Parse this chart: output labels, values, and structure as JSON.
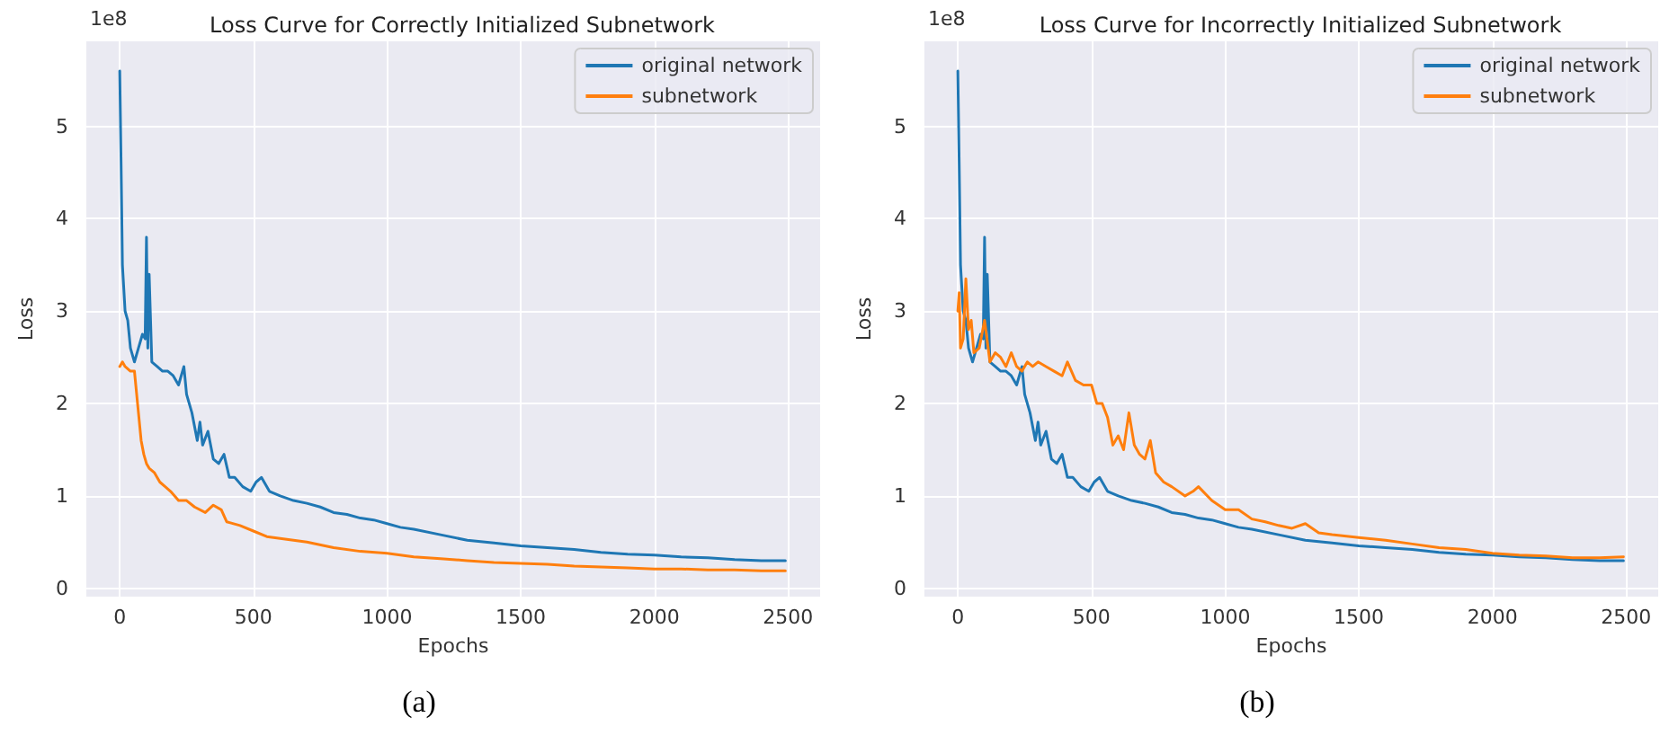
{
  "chart_data": [
    {
      "type": "line",
      "title": "Loss Curve for Correctly Initialized Subnetwork",
      "xlabel": "Epochs",
      "ylabel": "Loss",
      "annotations": [
        "1e8",
        "(a)"
      ],
      "xlim": [
        -125,
        2620
      ],
      "ylim": [
        -0.09,
        5.92
      ],
      "xticks": [
        0,
        500,
        1000,
        1500,
        2000,
        2500
      ],
      "yticks": [
        0,
        1,
        2,
        3,
        4,
        5
      ],
      "grid": true,
      "legend": "top right",
      "line_style": "solid",
      "marker": "none",
      "series": [
        {
          "name": "original network",
          "color": "#1f77b4",
          "x": [
            0,
            5,
            10,
            20,
            30,
            40,
            55,
            70,
            85,
            95,
            100,
            105,
            110,
            120,
            140,
            160,
            180,
            200,
            220,
            240,
            250,
            270,
            290,
            300,
            310,
            330,
            350,
            370,
            390,
            410,
            430,
            460,
            490,
            510,
            530,
            560,
            600,
            650,
            700,
            750,
            800,
            850,
            900,
            950,
            1000,
            1050,
            1100,
            1200,
            1300,
            1400,
            1500,
            1600,
            1700,
            1800,
            1900,
            2000,
            2100,
            2200,
            2300,
            2400,
            2490
          ],
          "values": [
            5.6,
            4.6,
            3.5,
            3.0,
            2.9,
            2.6,
            2.45,
            2.6,
            2.75,
            2.7,
            3.8,
            2.6,
            3.4,
            2.45,
            2.4,
            2.35,
            2.35,
            2.3,
            2.2,
            2.4,
            2.1,
            1.9,
            1.6,
            1.8,
            1.55,
            1.7,
            1.4,
            1.35,
            1.45,
            1.2,
            1.2,
            1.1,
            1.05,
            1.15,
            1.2,
            1.05,
            1.0,
            0.95,
            0.92,
            0.88,
            0.82,
            0.8,
            0.76,
            0.74,
            0.7,
            0.66,
            0.64,
            0.58,
            0.52,
            0.49,
            0.46,
            0.44,
            0.42,
            0.39,
            0.37,
            0.36,
            0.34,
            0.33,
            0.31,
            0.3,
            0.3
          ]
        },
        {
          "name": "subnetwork",
          "color": "#ff7f0e",
          "x": [
            0,
            10,
            20,
            40,
            55,
            60,
            70,
            80,
            90,
            100,
            110,
            130,
            150,
            170,
            190,
            220,
            250,
            280,
            320,
            350,
            380,
            400,
            450,
            500,
            550,
            600,
            700,
            800,
            900,
            1000,
            1100,
            1200,
            1300,
            1400,
            1500,
            1600,
            1700,
            1800,
            1900,
            2000,
            2100,
            2200,
            2300,
            2400,
            2490
          ],
          "values": [
            2.4,
            2.45,
            2.4,
            2.35,
            2.35,
            2.2,
            1.9,
            1.6,
            1.45,
            1.35,
            1.3,
            1.25,
            1.15,
            1.1,
            1.05,
            0.95,
            0.95,
            0.88,
            0.82,
            0.9,
            0.85,
            0.72,
            0.68,
            0.62,
            0.56,
            0.54,
            0.5,
            0.44,
            0.4,
            0.38,
            0.34,
            0.32,
            0.3,
            0.28,
            0.27,
            0.26,
            0.24,
            0.23,
            0.22,
            0.21,
            0.21,
            0.2,
            0.2,
            0.19,
            0.19
          ]
        }
      ]
    },
    {
      "type": "line",
      "title": "Loss Curve for Incorrectly Initialized Subnetwork",
      "xlabel": "Epochs",
      "ylabel": "Loss",
      "annotations": [
        "1e8",
        "(b)"
      ],
      "xlim": [
        -125,
        2620
      ],
      "ylim": [
        -0.09,
        5.92
      ],
      "xticks": [
        0,
        500,
        1000,
        1500,
        2000,
        2500
      ],
      "yticks": [
        0,
        1,
        2,
        3,
        4,
        5
      ],
      "grid": true,
      "legend": "top right",
      "line_style": "solid",
      "marker": "none",
      "series": [
        {
          "name": "original network",
          "color": "#1f77b4",
          "x": [
            0,
            5,
            10,
            20,
            30,
            40,
            55,
            70,
            85,
            95,
            100,
            105,
            110,
            120,
            140,
            160,
            180,
            200,
            220,
            240,
            250,
            270,
            290,
            300,
            310,
            330,
            350,
            370,
            390,
            410,
            430,
            460,
            490,
            510,
            530,
            560,
            600,
            650,
            700,
            750,
            800,
            850,
            900,
            950,
            1000,
            1050,
            1100,
            1200,
            1300,
            1400,
            1500,
            1600,
            1700,
            1800,
            1900,
            2000,
            2100,
            2200,
            2300,
            2400,
            2490
          ],
          "values": [
            5.6,
            4.6,
            3.5,
            3.0,
            2.9,
            2.6,
            2.45,
            2.6,
            2.75,
            2.7,
            3.8,
            2.6,
            3.4,
            2.45,
            2.4,
            2.35,
            2.35,
            2.3,
            2.2,
            2.4,
            2.1,
            1.9,
            1.6,
            1.8,
            1.55,
            1.7,
            1.4,
            1.35,
            1.45,
            1.2,
            1.2,
            1.1,
            1.05,
            1.15,
            1.2,
            1.05,
            1.0,
            0.95,
            0.92,
            0.88,
            0.82,
            0.8,
            0.76,
            0.74,
            0.7,
            0.66,
            0.64,
            0.58,
            0.52,
            0.49,
            0.46,
            0.44,
            0.42,
            0.39,
            0.37,
            0.36,
            0.34,
            0.33,
            0.31,
            0.3,
            0.3
          ]
        },
        {
          "name": "subnetwork",
          "color": "#ff7f0e",
          "x": [
            0,
            5,
            10,
            20,
            30,
            40,
            50,
            60,
            80,
            100,
            120,
            140,
            160,
            180,
            200,
            220,
            240,
            260,
            280,
            300,
            330,
            360,
            390,
            410,
            440,
            470,
            500,
            520,
            540,
            560,
            580,
            600,
            620,
            640,
            660,
            680,
            700,
            720,
            740,
            770,
            800,
            850,
            880,
            900,
            950,
            1000,
            1050,
            1100,
            1150,
            1200,
            1250,
            1300,
            1350,
            1400,
            1500,
            1600,
            1700,
            1800,
            1900,
            2000,
            2100,
            2200,
            2300,
            2400,
            2490
          ],
          "values": [
            3.0,
            3.2,
            2.6,
            2.7,
            3.35,
            2.8,
            2.9,
            2.55,
            2.6,
            2.9,
            2.45,
            2.55,
            2.5,
            2.4,
            2.55,
            2.4,
            2.35,
            2.45,
            2.4,
            2.45,
            2.4,
            2.35,
            2.3,
            2.45,
            2.25,
            2.2,
            2.2,
            2.0,
            2.0,
            1.85,
            1.55,
            1.65,
            1.5,
            1.9,
            1.55,
            1.45,
            1.4,
            1.6,
            1.25,
            1.15,
            1.1,
            1.0,
            1.05,
            1.1,
            0.95,
            0.85,
            0.85,
            0.75,
            0.72,
            0.68,
            0.65,
            0.7,
            0.6,
            0.58,
            0.55,
            0.52,
            0.48,
            0.44,
            0.42,
            0.38,
            0.36,
            0.35,
            0.33,
            0.33,
            0.34
          ]
        }
      ]
    }
  ]
}
